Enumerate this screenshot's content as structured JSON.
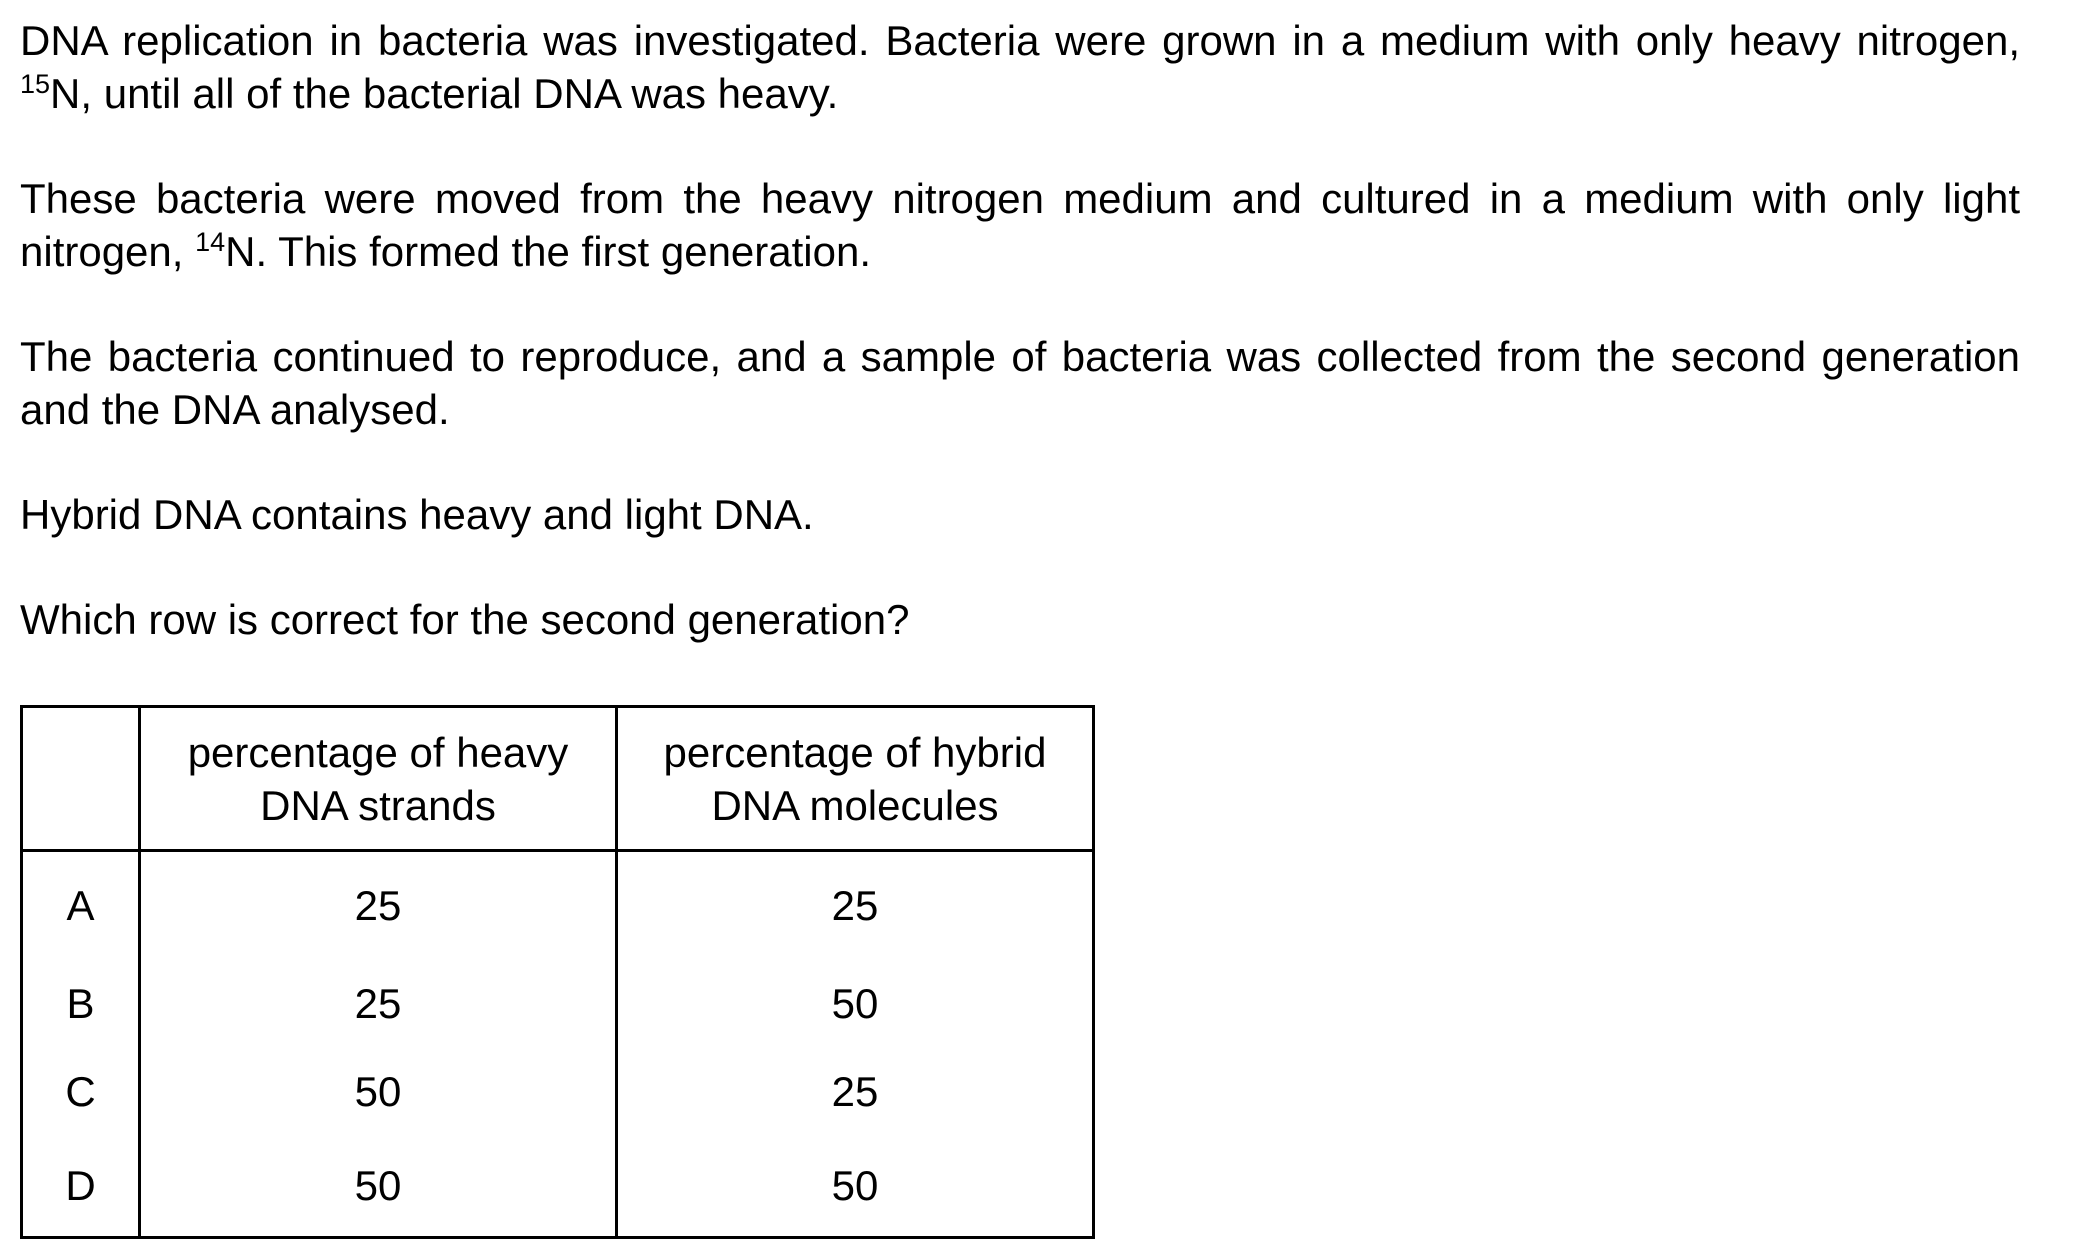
{
  "question": {
    "paragraph1": {
      "text_before_sup": "DNA replication in bacteria was investigated. Bacteria were grown in a medium with only heavy nitrogen, ",
      "sup": "15",
      "text_after_sup": "N, until all of the bacterial DNA was heavy."
    },
    "paragraph2": {
      "text_before_sup": "These bacteria were moved from the heavy nitrogen medium and cultured in a medium with only light nitrogen, ",
      "sup": "14",
      "text_after_sup": "N. This formed the first generation."
    },
    "paragraph3": "The bacteria continued to reproduce, and a sample of bacteria was collected from the second generation and the DNA analysed.",
    "paragraph4": "Hybrid DNA contains heavy and light DNA.",
    "prompt": "Which row is correct for the second generation?"
  },
  "table": {
    "headers": {
      "key": "",
      "heavy": "percentage of heavy DNA strands",
      "hybrid": "percentage of hybrid DNA molecules"
    },
    "rows": [
      {
        "key": "A",
        "heavy": "25",
        "hybrid": "25"
      },
      {
        "key": "B",
        "heavy": "25",
        "hybrid": "50"
      },
      {
        "key": "C",
        "heavy": "50",
        "hybrid": "25"
      },
      {
        "key": "D",
        "heavy": "50",
        "hybrid": "50"
      }
    ]
  }
}
